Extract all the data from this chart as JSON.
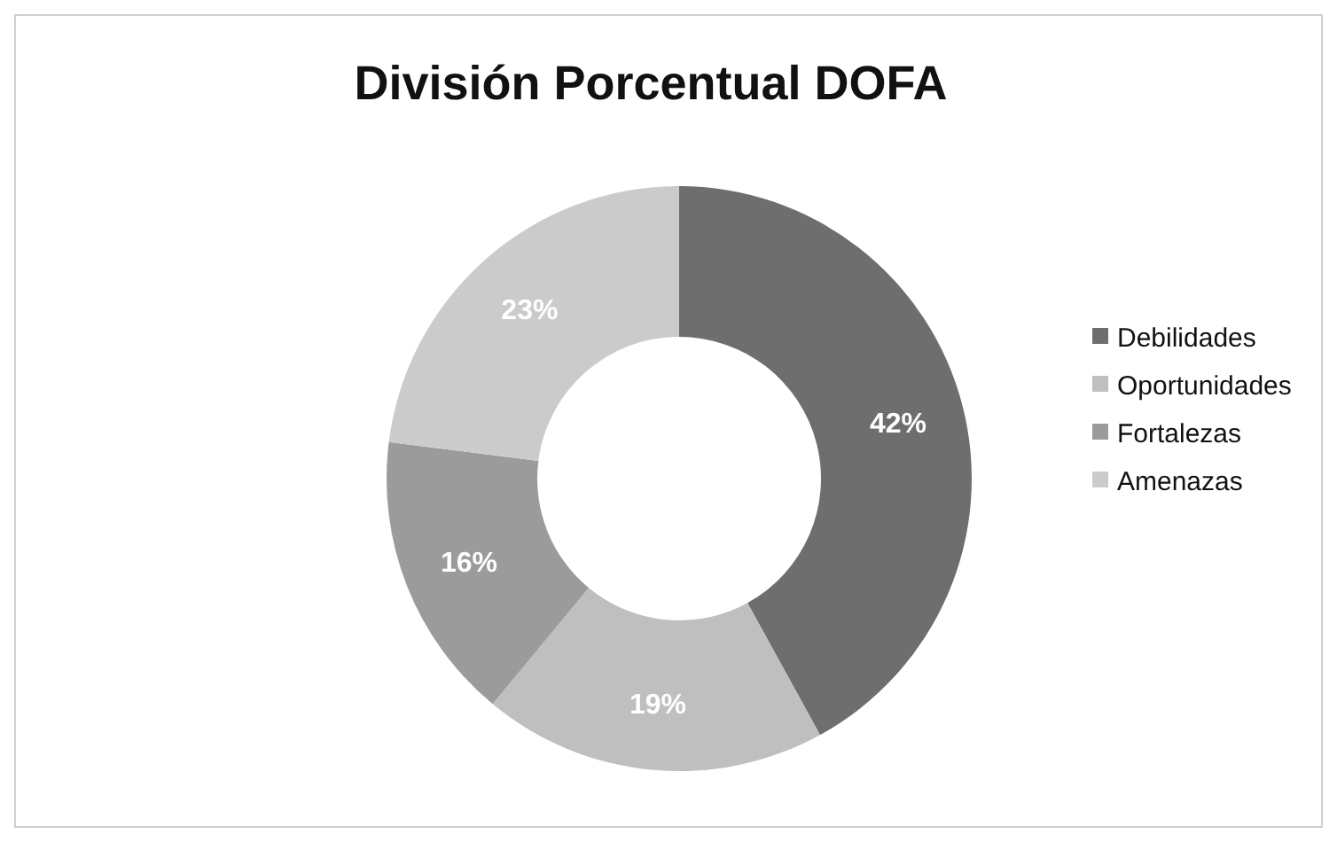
{
  "chart_data": {
    "type": "donut",
    "title": "División Porcentual DOFA",
    "categories": [
      "Debilidades",
      "Oportunidades",
      "Fortalezas",
      "Amenazas"
    ],
    "values": [
      42,
      19,
      16,
      23
    ],
    "colors": [
      "#6e6e6e",
      "#bfbfbf",
      "#9b9b9b",
      "#cbcbcb"
    ],
    "value_labels": [
      "42%",
      "19%",
      "16%",
      "23%"
    ],
    "legend": "right"
  }
}
